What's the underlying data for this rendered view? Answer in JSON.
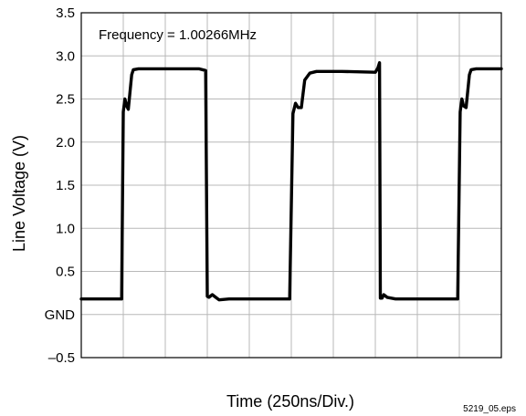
{
  "chart_data": {
    "type": "line",
    "title": "",
    "xlabel": "Time (250ns/Div.)",
    "ylabel": "Line Voltage (V)",
    "annotation": "Frequency = 1.00266MHz",
    "figure_id": "5219_05.eps",
    "xlim": [
      0,
      2500
    ],
    "ylim": [
      -0.5,
      3.5
    ],
    "x_divisions": 10,
    "y_ticks": [
      3.5,
      3.0,
      2.5,
      2.0,
      1.5,
      1.0,
      0.5,
      0.0,
      -0.5
    ],
    "y_tick_labels": [
      "3.5",
      "3.0",
      "2.5",
      "2.0",
      "1.5",
      "1.0",
      "0.5",
      "GND",
      "–0.5"
    ],
    "grid": true,
    "line_color": "#000000",
    "series": [
      {
        "x": [
          0,
          240,
          250,
          260,
          270,
          280,
          300,
          310,
          340,
          400,
          700,
          740,
          750,
          760,
          780,
          800,
          820,
          880,
          1000,
          1240,
          1260,
          1275,
          1290,
          1310,
          1330,
          1360,
          1400,
          1550,
          1750,
          1765,
          1775,
          1780,
          1790,
          1800,
          1820,
          1870,
          2000,
          2240,
          2255,
          2265,
          2275,
          2290,
          2310,
          2320,
          2350,
          2400,
          2500
        ],
        "y": [
          0.18,
          0.18,
          2.35,
          2.5,
          2.42,
          2.38,
          2.78,
          2.84,
          2.85,
          2.85,
          2.85,
          2.83,
          0.21,
          0.2,
          0.23,
          0.2,
          0.17,
          0.18,
          0.18,
          0.18,
          2.33,
          2.45,
          2.4,
          2.4,
          2.72,
          2.8,
          2.82,
          2.82,
          2.81,
          2.86,
          2.92,
          0.19,
          0.19,
          0.23,
          0.2,
          0.18,
          0.18,
          0.18,
          2.35,
          2.5,
          2.42,
          2.4,
          2.78,
          2.84,
          2.85,
          2.85,
          2.85
        ]
      }
    ]
  }
}
